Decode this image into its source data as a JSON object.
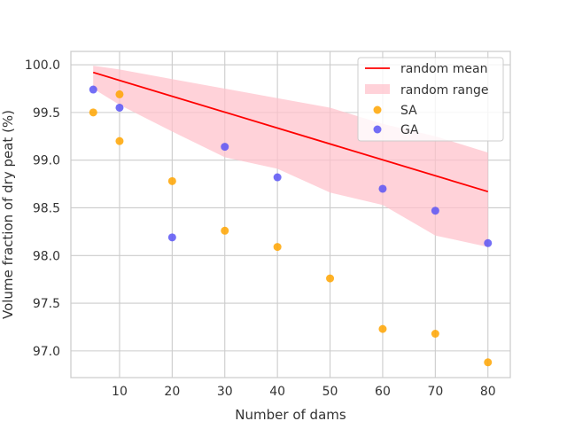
{
  "chart_data": {
    "type": "scatter",
    "title": "",
    "xlabel": "Number of dams",
    "ylabel": "Volume fraction of dry peat (%)",
    "xlim": [
      0.75,
      84.25
    ],
    "ylim": [
      96.72,
      100.14
    ],
    "x_ticks": [
      10,
      20,
      30,
      40,
      50,
      60,
      70,
      80
    ],
    "x_tick_labels": [
      "10",
      "20",
      "30",
      "40",
      "50",
      "60",
      "70",
      "80"
    ],
    "y_ticks": [
      97.0,
      97.5,
      98.0,
      98.5,
      99.0,
      99.5,
      100.0
    ],
    "y_tick_labels": [
      "97.0",
      "97.5",
      "98.0",
      "98.5",
      "99.0",
      "99.5",
      "100.0"
    ],
    "grid": true,
    "legend_position": "top-right",
    "colors": {
      "mean": "#ff0000",
      "range": "#ffc0cb",
      "sa": "#ffa500",
      "ga": "#5a55f5",
      "grid": "#cccccc",
      "frame": "#cccccc"
    },
    "random_range": {
      "name": "random range",
      "x": [
        5,
        10,
        20,
        30,
        40,
        50,
        60,
        70,
        80
      ],
      "upper": [
        99.99,
        99.95,
        99.85,
        99.75,
        99.65,
        99.55,
        99.38,
        99.25,
        99.08
      ],
      "lower": [
        99.75,
        99.58,
        99.3,
        99.03,
        98.91,
        98.66,
        98.53,
        98.21,
        98.09
      ]
    },
    "series": [
      {
        "name": "random mean",
        "kind": "line",
        "x": [
          5,
          80
        ],
        "y": [
          99.92,
          98.67
        ]
      },
      {
        "name": "SA",
        "kind": "scatter",
        "x": [
          5,
          10,
          10,
          20,
          30,
          40,
          50,
          60,
          70,
          80
        ],
        "y": [
          99.5,
          99.69,
          99.2,
          98.78,
          98.26,
          98.09,
          97.76,
          97.23,
          97.18,
          96.88
        ]
      },
      {
        "name": "GA",
        "kind": "scatter",
        "x": [
          5,
          10,
          20,
          30,
          40,
          60,
          70,
          80
        ],
        "y": [
          99.74,
          99.55,
          98.19,
          99.14,
          98.82,
          98.7,
          98.47,
          98.13
        ]
      }
    ],
    "legend": [
      "random mean",
      "random range",
      "SA",
      "GA"
    ]
  }
}
